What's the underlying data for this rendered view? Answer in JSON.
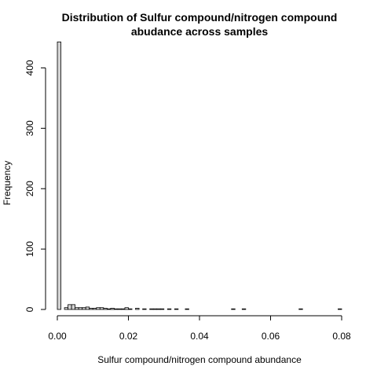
{
  "chart_data": {
    "type": "bar",
    "title_lines": [
      "Distribution of Sulfur compound/nitrogen compound",
      "abudance across samples"
    ],
    "xlabel": "Sulfur compound/nitrogen compound abundance",
    "ylabel": "Frequency",
    "xlim": [
      0,
      0.08
    ],
    "ylim": [
      0,
      450
    ],
    "x_ticks": [
      0.0,
      0.02,
      0.04,
      0.06,
      0.08
    ],
    "x_tick_labels": [
      "0.00",
      "0.02",
      "0.04",
      "0.06",
      "0.08"
    ],
    "y_ticks": [
      0,
      100,
      200,
      300,
      400
    ],
    "y_tick_labels": [
      "0",
      "100",
      "200",
      "300",
      "400"
    ],
    "bin_width": 0.001,
    "bins_start": 0,
    "values": [
      443,
      0,
      3,
      8,
      8,
      3,
      3,
      3,
      4,
      2,
      2,
      3,
      3,
      2,
      1,
      2,
      1,
      1,
      1,
      3,
      1,
      0,
      2,
      0,
      1,
      0,
      1,
      1,
      1,
      1,
      0,
      1,
      0,
      1,
      0,
      0,
      1,
      0,
      0,
      0,
      0,
      0,
      0,
      0,
      0,
      0,
      0,
      0,
      0,
      1,
      0,
      0,
      1,
      0,
      0,
      0,
      0,
      0,
      0,
      0,
      0,
      0,
      0,
      0,
      0,
      0,
      0,
      0,
      1,
      0,
      0,
      0,
      0,
      0,
      0,
      0,
      0,
      0,
      0,
      1
    ]
  }
}
